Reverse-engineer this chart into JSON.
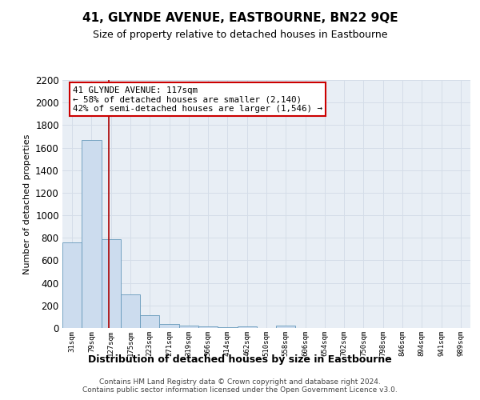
{
  "title": "41, GLYNDE AVENUE, EASTBOURNE, BN22 9QE",
  "subtitle": "Size of property relative to detached houses in Eastbourne",
  "xlabel": "Distribution of detached houses by size in Eastbourne",
  "ylabel": "Number of detached properties",
  "footer_line1": "Contains HM Land Registry data © Crown copyright and database right 2024.",
  "footer_line2": "Contains public sector information licensed under the Open Government Licence v3.0.",
  "annotation_line1": "41 GLYNDE AVENUE: 117sqm",
  "annotation_line2": "← 58% of detached houses are smaller (2,140)",
  "annotation_line3": "42% of semi-detached houses are larger (1,546) →",
  "bar_labels": [
    "31sqm",
    "79sqm",
    "127sqm",
    "175sqm",
    "223sqm",
    "271sqm",
    "319sqm",
    "366sqm",
    "414sqm",
    "462sqm",
    "510sqm",
    "558sqm",
    "606sqm",
    "654sqm",
    "702sqm",
    "750sqm",
    "798sqm",
    "846sqm",
    "894sqm",
    "941sqm",
    "989sqm"
  ],
  "bar_values": [
    760,
    1670,
    790,
    300,
    113,
    35,
    22,
    15,
    10,
    12,
    0,
    22,
    0,
    0,
    0,
    0,
    0,
    0,
    0,
    0,
    0
  ],
  "bar_color": "#ccdcee",
  "bar_edge_color": "#6699bb",
  "background_color": "#e8eef5",
  "grid_color": "#d4dde8",
  "red_line_color": "#aa0000",
  "annotation_box_color": "#cc0000",
  "red_line_x": 1.88,
  "ylim": [
    0,
    2200
  ],
  "yticks": [
    0,
    200,
    400,
    600,
    800,
    1000,
    1200,
    1400,
    1600,
    1800,
    2000,
    2200
  ],
  "title_fontsize": 11,
  "subtitle_fontsize": 9
}
